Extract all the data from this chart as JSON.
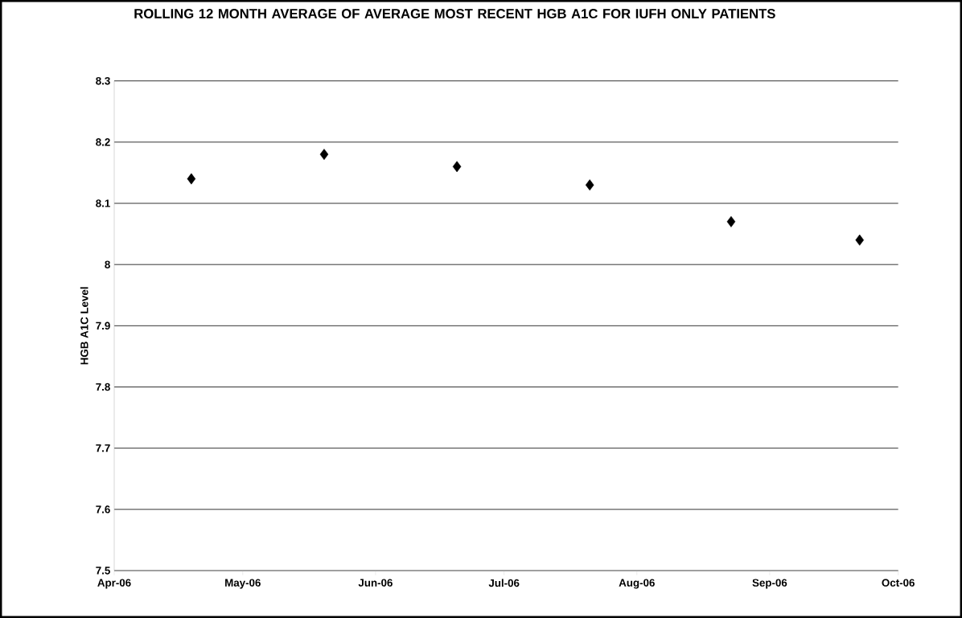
{
  "chart_data": {
    "type": "scatter",
    "title": "ROLLING 12 MONTH AVERAGE OF AVERAGE MOST RECENT HGB A1C FOR IUFH ONLY PATIENTS",
    "ylabel": "HGB A1C Level",
    "x": [
      "2006-04-19",
      "2006-05-20",
      "2006-06-20",
      "2006-07-21",
      "2006-08-23",
      "2006-09-22"
    ],
    "series": [
      {
        "color": "#000000",
        "values": [
          8.14,
          8.18,
          8.16,
          8.13,
          8.07,
          8.04
        ]
      }
    ],
    "xlim": [
      "2006-04-01",
      "2006-10-01"
    ],
    "xticks": [
      {
        "value": "2006-04-01",
        "label": "Apr-06"
      },
      {
        "value": "2006-05-01",
        "label": "May-06"
      },
      {
        "value": "2006-06-01",
        "label": "Jun-06"
      },
      {
        "value": "2006-07-01",
        "label": "Jul-06"
      },
      {
        "value": "2006-08-01",
        "label": "Aug-06"
      },
      {
        "value": "2006-09-01",
        "label": "Sep-06"
      },
      {
        "value": "2006-10-01",
        "label": "Oct-06"
      }
    ],
    "ylim": [
      7.5,
      8.3
    ],
    "yticks": [
      7.5,
      7.6,
      7.7,
      7.8,
      7.9,
      8,
      8.1,
      8.2,
      8.3
    ],
    "grid": "y",
    "marker": "diamond"
  }
}
